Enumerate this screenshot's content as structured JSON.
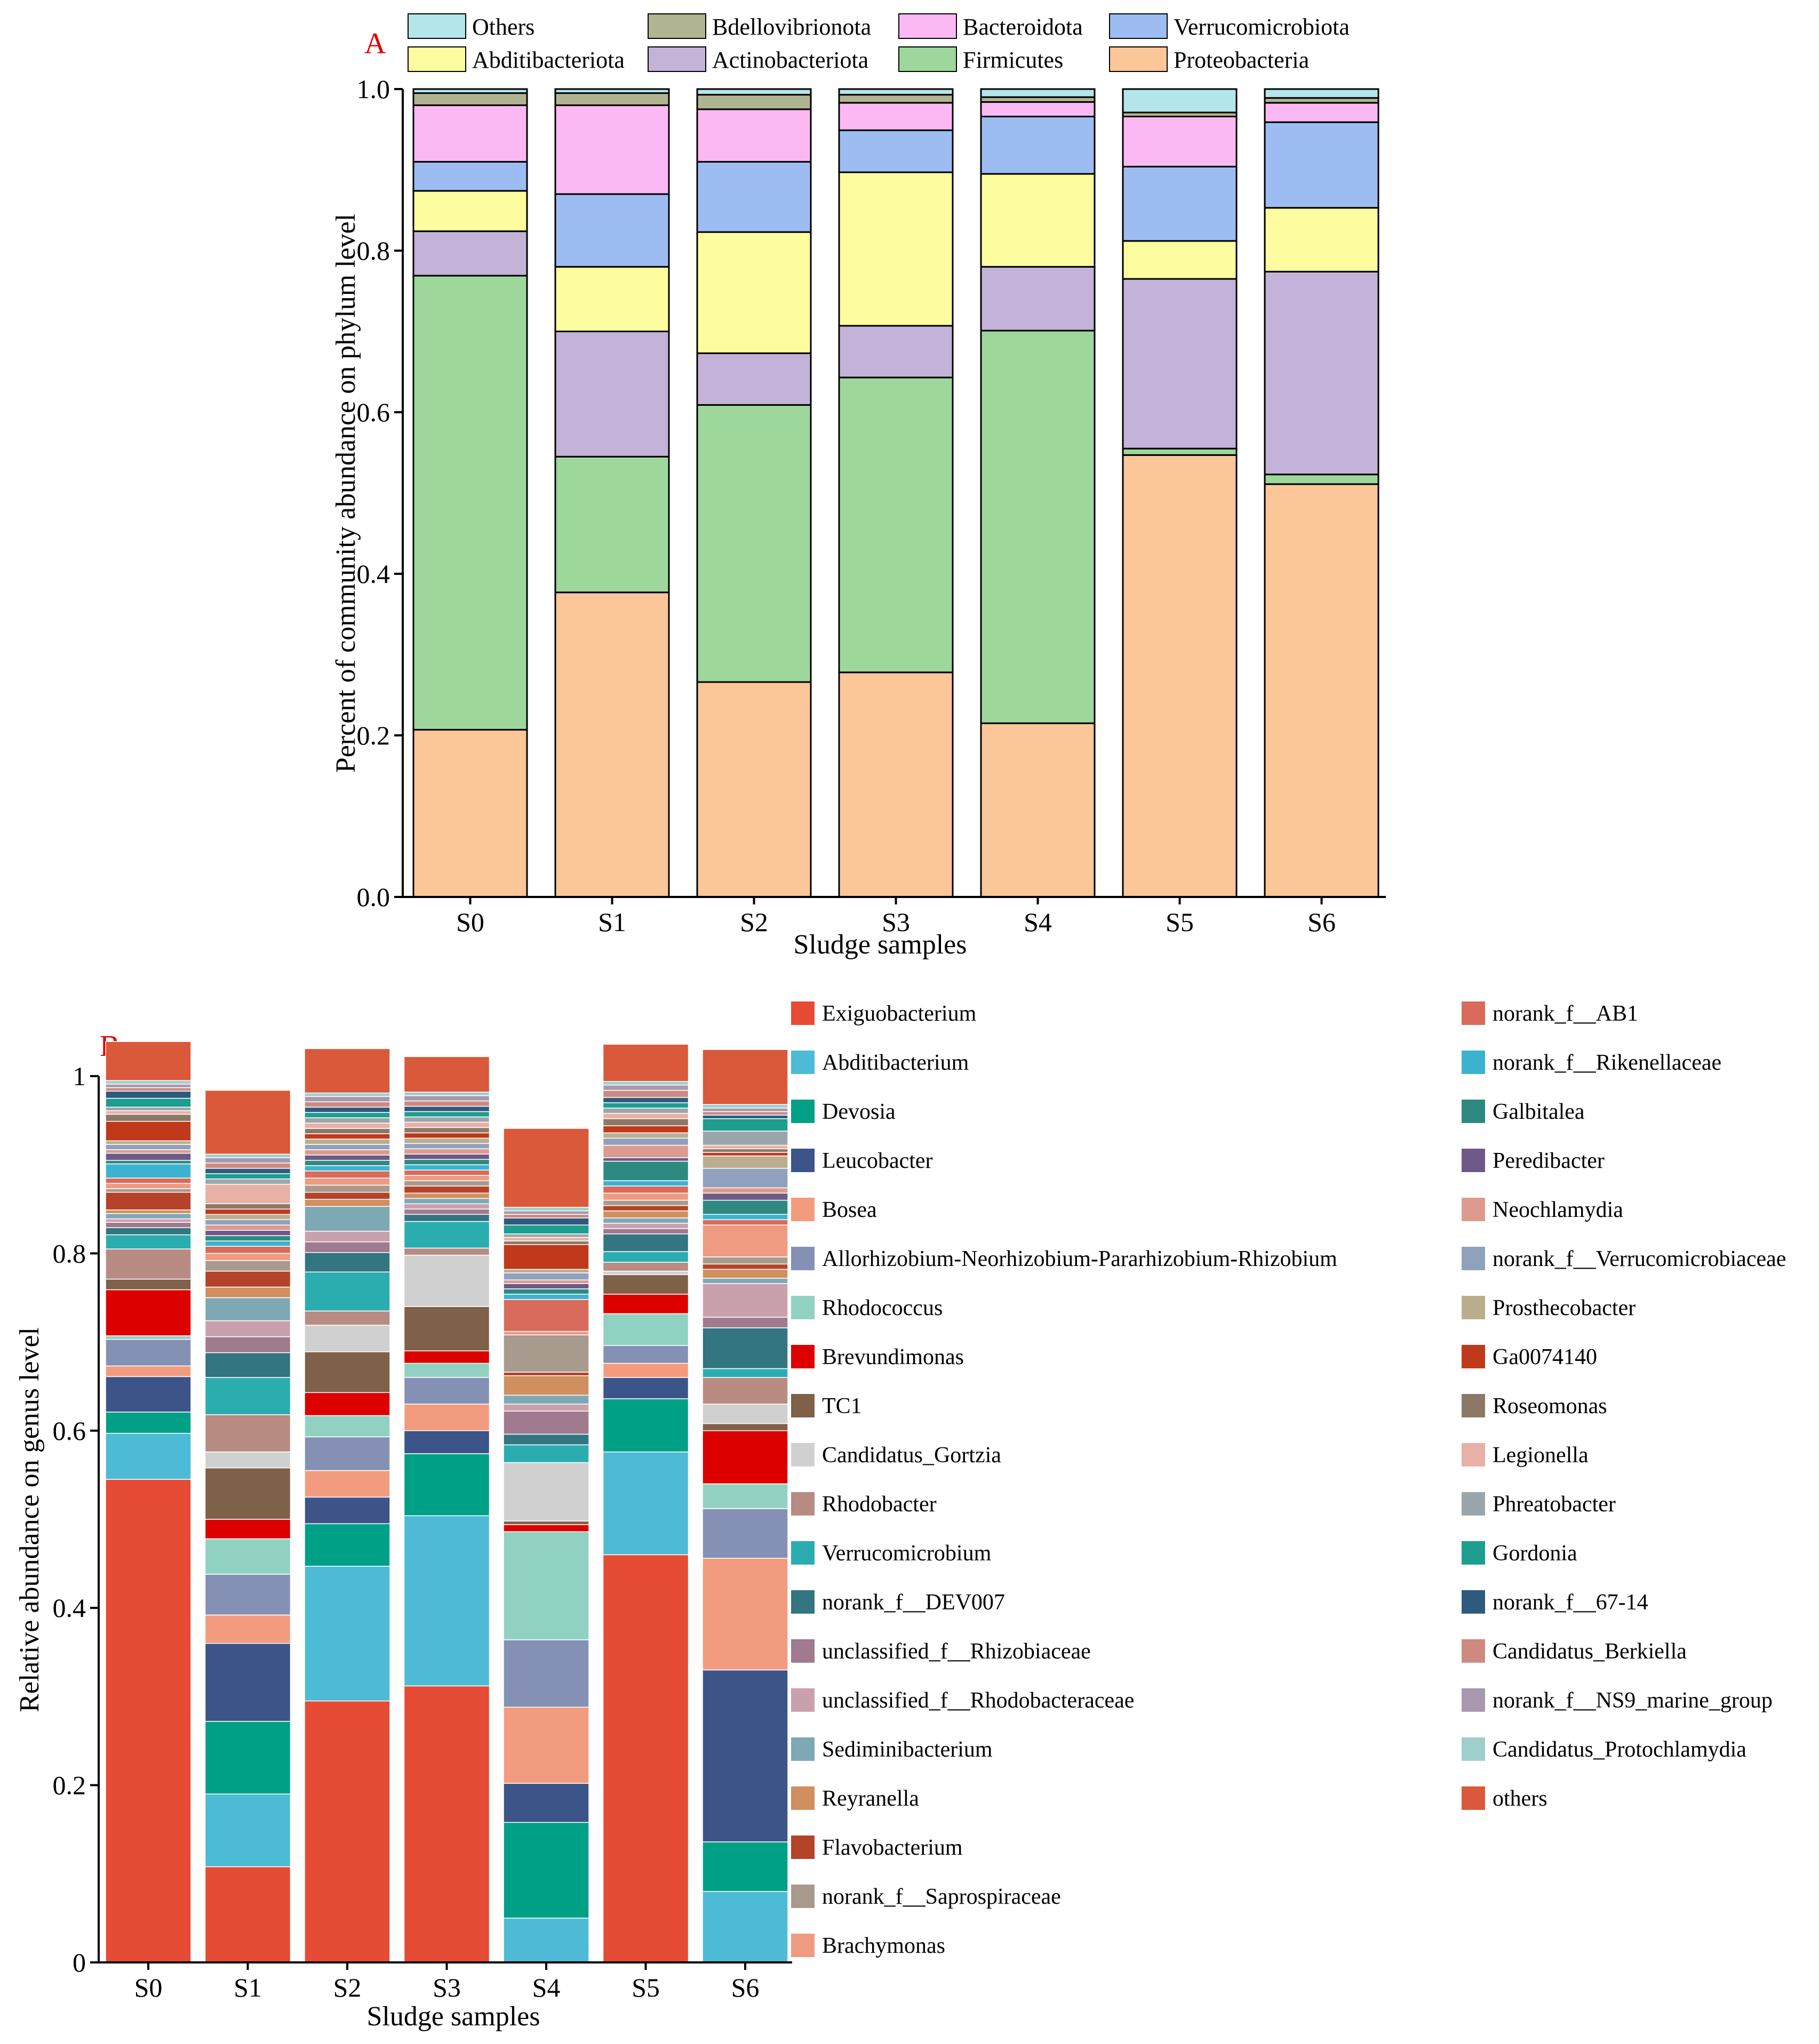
{
  "chart_data": [
    {
      "type": "bar",
      "stacked": true,
      "panel": "A",
      "title": "",
      "xlabel": "Sludge samples",
      "ylabel": "Percent of community abundance on phylum level",
      "ylim": [
        0,
        1
      ],
      "yticks": [
        "0.0",
        "0.2",
        "0.4",
        "0.6",
        "0.8",
        "1.0"
      ],
      "categories": [
        "S0",
        "S1",
        "S2",
        "S3",
        "S4",
        "S5",
        "S6"
      ],
      "legend_position": "top",
      "series": [
        {
          "name": "Proteobacteria",
          "color": "#FBC698",
          "values": [
            0.207,
            0.377,
            0.266,
            0.278,
            0.215,
            0.547,
            0.511
          ]
        },
        {
          "name": "Firmicutes",
          "color": "#9DD79B",
          "values": [
            0.562,
            0.168,
            0.343,
            0.365,
            0.486,
            0.008,
            0.012
          ]
        },
        {
          "name": "Actinobacteriota",
          "color": "#C3B3D8",
          "values": [
            0.055,
            0.155,
            0.064,
            0.064,
            0.079,
            0.21,
            0.251
          ]
        },
        {
          "name": "Abditibacteriota",
          "color": "#FDFC9E",
          "values": [
            0.05,
            0.08,
            0.15,
            0.19,
            0.115,
            0.047,
            0.079
          ]
        },
        {
          "name": "Verrucomicrobiota",
          "color": "#9DBDF2",
          "values": [
            0.036,
            0.09,
            0.087,
            0.052,
            0.071,
            0.092,
            0.106
          ]
        },
        {
          "name": "Bacteroidota",
          "color": "#FBB9F3",
          "values": [
            0.07,
            0.11,
            0.065,
            0.034,
            0.018,
            0.062,
            0.024
          ]
        },
        {
          "name": "Bdellovibrionota",
          "color": "#B1B490",
          "values": [
            0.015,
            0.015,
            0.018,
            0.01,
            0.006,
            0.005,
            0.006
          ]
        },
        {
          "name": "Others",
          "color": "#B3E5EA",
          "values": [
            0.005,
            0.005,
            0.007,
            0.007,
            0.01,
            0.029,
            0.011
          ]
        }
      ],
      "legend_order": [
        "Others",
        "Bdellovibrionota",
        "Bacteroidota",
        "Verrucomicrobiota",
        "Abditibacteriota",
        "Actinobacteriota",
        "Firmicutes",
        "Proteobacteria"
      ]
    },
    {
      "type": "bar",
      "stacked": true,
      "panel": "B",
      "title": "",
      "xlabel": "Sludge samples",
      "ylabel": "Relative abundance on genus level",
      "ylim": [
        0,
        1
      ],
      "yticks": [
        "0",
        "0.2",
        "0.4",
        "0.6",
        "0.8",
        "1"
      ],
      "categories": [
        "S0",
        "S1",
        "S2",
        "S3",
        "S4",
        "S5",
        "S6"
      ],
      "legend_position": "right",
      "series": [
        {
          "name": "Exiguobacterium",
          "color": "#E64B35",
          "values": [
            0.545,
            0.108,
            0.295,
            0.312,
            0.0,
            0.46,
            0.0
          ]
        },
        {
          "name": "Abditibacterium",
          "color": "#4DBBD5",
          "values": [
            0.052,
            0.082,
            0.152,
            0.192,
            0.05,
            0.116,
            0.08
          ]
        },
        {
          "name": "Devosia",
          "color": "#00A087",
          "values": [
            0.024,
            0.082,
            0.048,
            0.07,
            0.108,
            0.06,
            0.056
          ]
        },
        {
          "name": "Leucobacter",
          "color": "#3C5488",
          "values": [
            0.04,
            0.088,
            0.03,
            0.026,
            0.044,
            0.024,
            0.194
          ]
        },
        {
          "name": "Bosea",
          "color": "#F39B7F",
          "values": [
            0.012,
            0.032,
            0.03,
            0.03,
            0.086,
            0.016,
            0.126
          ]
        },
        {
          "name": "Allorhizobium-Neorhizobium-Pararhizobium-Rhizobium",
          "color": "#8491B4",
          "values": [
            0.03,
            0.046,
            0.038,
            0.03,
            0.076,
            0.02,
            0.056
          ]
        },
        {
          "name": "Rhodococcus",
          "color": "#91D1C2",
          "values": [
            0.004,
            0.04,
            0.024,
            0.016,
            0.122,
            0.036,
            0.028
          ]
        },
        {
          "name": "Brevundimonas",
          "color": "#DC0000",
          "values": [
            0.052,
            0.022,
            0.026,
            0.014,
            0.008,
            0.022,
            0.06
          ]
        },
        {
          "name": "TC1",
          "color": "#7E6148",
          "values": [
            0.012,
            0.058,
            0.046,
            0.05,
            0.004,
            0.022,
            0.008
          ]
        },
        {
          "name": "Candidatus_Gortzia",
          "color": "#D0D0D0",
          "values": [
            0.0,
            0.018,
            0.03,
            0.058,
            0.066,
            0.004,
            0.022
          ]
        },
        {
          "name": "Rhodobacter",
          "color": "#B88C83",
          "values": [
            0.034,
            0.042,
            0.016,
            0.008,
            0.0,
            0.01,
            0.03
          ]
        },
        {
          "name": "Verrucomicrobium",
          "color": "#2BADB0",
          "values": [
            0.016,
            0.042,
            0.044,
            0.03,
            0.02,
            0.012,
            0.01
          ]
        },
        {
          "name": "norank_f__DEV007",
          "color": "#337580",
          "values": [
            0.008,
            0.028,
            0.022,
            0.008,
            0.012,
            0.02,
            0.046
          ]
        },
        {
          "name": "unclassified_f__Rhizobiaceae",
          "color": "#A07A8F",
          "values": [
            0.006,
            0.018,
            0.012,
            0.006,
            0.026,
            0.006,
            0.012
          ]
        },
        {
          "name": "unclassified_f__Rhodobacteraceae",
          "color": "#C9A1AC",
          "values": [
            0.004,
            0.018,
            0.012,
            0.006,
            0.008,
            0.006,
            0.038
          ]
        },
        {
          "name": "Sediminibacterium",
          "color": "#7FA8B5",
          "values": [
            0.006,
            0.026,
            0.028,
            0.006,
            0.01,
            0.006,
            0.006
          ]
        },
        {
          "name": "Reyranella",
          "color": "#D08F5E",
          "values": [
            0.004,
            0.012,
            0.008,
            0.006,
            0.022,
            0.008,
            0.01
          ]
        },
        {
          "name": "Flavobacterium",
          "color": "#B5432A",
          "values": [
            0.02,
            0.018,
            0.008,
            0.008,
            0.004,
            0.006,
            0.006
          ]
        },
        {
          "name": "norank_f__Saprospiraceae",
          "color": "#A89A8C",
          "values": [
            0.004,
            0.012,
            0.008,
            0.006,
            0.042,
            0.006,
            0.008
          ]
        },
        {
          "name": "Brachymonas",
          "color": "#EE9B82",
          "values": [
            0.006,
            0.008,
            0.008,
            0.006,
            0.004,
            0.008,
            0.036
          ]
        },
        {
          "name": "norank_f__AB1",
          "color": "#D86B5C",
          "values": [
            0.006,
            0.008,
            0.008,
            0.006,
            0.036,
            0.008,
            0.006
          ]
        },
        {
          "name": "norank_f__Rikenellaceae",
          "color": "#3BB3CF",
          "values": [
            0.016,
            0.006,
            0.006,
            0.006,
            0.006,
            0.006,
            0.006
          ]
        },
        {
          "name": "Galbitalea",
          "color": "#2E8A80",
          "values": [
            0.004,
            0.006,
            0.006,
            0.006,
            0.006,
            0.022,
            0.016
          ]
        },
        {
          "name": "Peredibacter",
          "color": "#6D5A86",
          "values": [
            0.008,
            0.006,
            0.006,
            0.006,
            0.006,
            0.004,
            0.008
          ]
        },
        {
          "name": "Neochlamydia",
          "color": "#DC9B8E",
          "values": [
            0.004,
            0.006,
            0.006,
            0.006,
            0.004,
            0.014,
            0.006
          ]
        },
        {
          "name": "norank_f__Verrucomicrobiaceae",
          "color": "#8FA1BC",
          "values": [
            0.006,
            0.006,
            0.006,
            0.006,
            0.008,
            0.008,
            0.022
          ]
        },
        {
          "name": "Prosthecobacter",
          "color": "#BBAE8F",
          "values": [
            0.004,
            0.006,
            0.006,
            0.006,
            0.004,
            0.006,
            0.014
          ]
        },
        {
          "name": "Ga0074140",
          "color": "#C0391B",
          "values": [
            0.022,
            0.006,
            0.006,
            0.006,
            0.028,
            0.008,
            0.004
          ]
        },
        {
          "name": "Roseomonas",
          "color": "#8C7867",
          "values": [
            0.008,
            0.006,
            0.006,
            0.006,
            0.004,
            0.008,
            0.004
          ]
        },
        {
          "name": "Legionella",
          "color": "#E8B0A6",
          "values": [
            0.004,
            0.022,
            0.006,
            0.006,
            0.004,
            0.006,
            0.004
          ]
        },
        {
          "name": "Phreatobacter",
          "color": "#9BA6AC",
          "values": [
            0.004,
            0.006,
            0.006,
            0.006,
            0.004,
            0.006,
            0.016
          ]
        },
        {
          "name": "Gordonia",
          "color": "#1D9E8E",
          "values": [
            0.01,
            0.006,
            0.006,
            0.006,
            0.01,
            0.006,
            0.014
          ]
        },
        {
          "name": "norank_f__67-14",
          "color": "#2F5A80",
          "values": [
            0.008,
            0.006,
            0.006,
            0.006,
            0.008,
            0.006,
            0.004
          ]
        },
        {
          "name": "Candidatus_Berkiella",
          "color": "#CE8A80",
          "values": [
            0.004,
            0.006,
            0.006,
            0.006,
            0.004,
            0.008,
            0.004
          ]
        },
        {
          "name": "norank_f__NS9_marine_group",
          "color": "#A898B0",
          "values": [
            0.004,
            0.006,
            0.006,
            0.006,
            0.004,
            0.006,
            0.004
          ]
        },
        {
          "name": "Candidatus_Protochlamydia",
          "color": "#9FCFCC",
          "values": [
            0.004,
            0.004,
            0.004,
            0.004,
            0.004,
            0.004,
            0.004
          ]
        },
        {
          "name": "others",
          "color": "#D9593A",
          "values": [
            0.044,
            0.072,
            0.05,
            0.04,
            0.089,
            0.042,
            0.062
          ]
        }
      ]
    }
  ],
  "panel_a": {
    "letter": "A"
  },
  "panel_b": {
    "letter": "B"
  }
}
